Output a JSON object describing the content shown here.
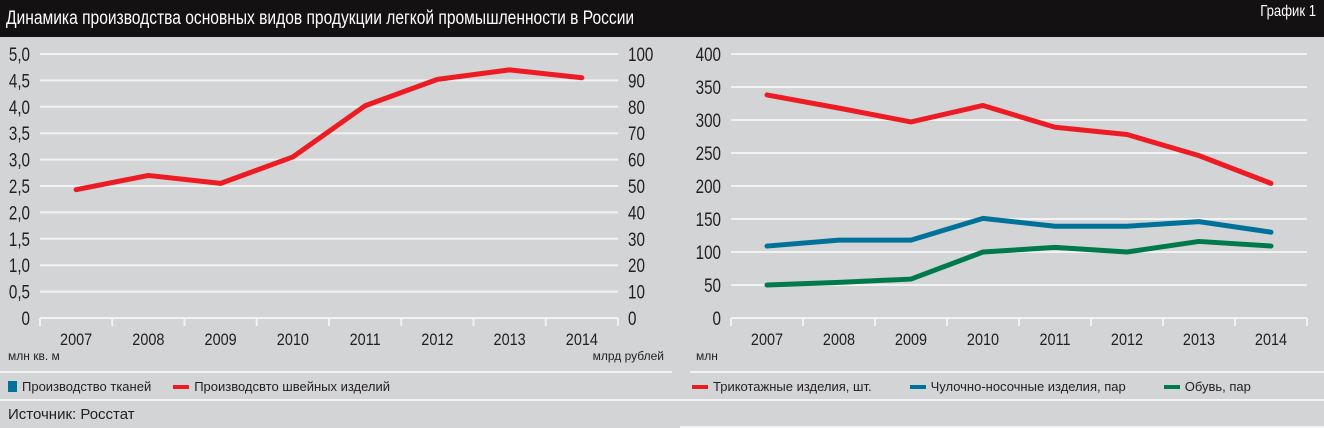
{
  "header": {
    "title": "Динамика производства основных видов продукции легкой промышленности в России",
    "figure_label": "График 1"
  },
  "source": "Источник: Росстат",
  "colors": {
    "red": "#ed1c24",
    "blue": "#00729a",
    "green": "#007a4d",
    "background": "#d3d4d6",
    "grid": "#f2f2f2",
    "titlebar": "#141113"
  },
  "chart_data": [
    {
      "type": "line",
      "categories": [
        "2007",
        "2008",
        "2009",
        "2010",
        "2011",
        "2012",
        "2013",
        "2014"
      ],
      "y_left": {
        "label": "млн кв. м",
        "range": [
          0,
          5
        ],
        "ticks": [
          "0",
          "0,5",
          "1,0",
          "1,5",
          "2,0",
          "2,5",
          "3,0",
          "3,5",
          "4,0",
          "4,5",
          "5,0"
        ]
      },
      "y_right": {
        "label": "млрд рублей",
        "range": [
          0,
          100
        ],
        "ticks": [
          "0",
          "10",
          "20",
          "30",
          "40",
          "50",
          "60",
          "70",
          "80",
          "90",
          "100"
        ]
      },
      "grid": true,
      "legend_placement": "bottom",
      "legend": [
        {
          "name": "Производство тканей",
          "color": "#00729a",
          "marker": "square"
        },
        {
          "name": "Производсвто швейных изделий",
          "color": "#ed1c24",
          "marker": "line"
        }
      ],
      "series": [
        {
          "name": "Производсвто швейных изделий",
          "axis": "right",
          "color": "#ed1c24",
          "values": [
            48.6,
            54,
            51,
            61,
            80.4,
            90.4,
            94,
            91
          ]
        }
      ]
    },
    {
      "type": "line",
      "categories": [
        "2007",
        "2008",
        "2009",
        "2010",
        "2011",
        "2012",
        "2013",
        "2014"
      ],
      "y_left": {
        "label": "млн",
        "range": [
          0,
          400
        ],
        "ticks": [
          "0",
          "50",
          "100",
          "150",
          "200",
          "250",
          "300",
          "350",
          "400"
        ]
      },
      "grid": true,
      "legend_placement": "bottom",
      "series": [
        {
          "name": "Трикотажные изделия, шт.",
          "color": "#ed1c24",
          "values": [
            338,
            318,
            297,
            322,
            289,
            278,
            246,
            204
          ]
        },
        {
          "name": "Чулочно-носочные изделия, пар",
          "color": "#00729a",
          "values": [
            109,
            118,
            118,
            151,
            139,
            139,
            146,
            130
          ]
        },
        {
          "name": "Обувь, пар",
          "color": "#007a4d",
          "values": [
            50,
            54,
            59,
            100,
            107,
            100,
            116,
            109
          ]
        }
      ]
    }
  ]
}
